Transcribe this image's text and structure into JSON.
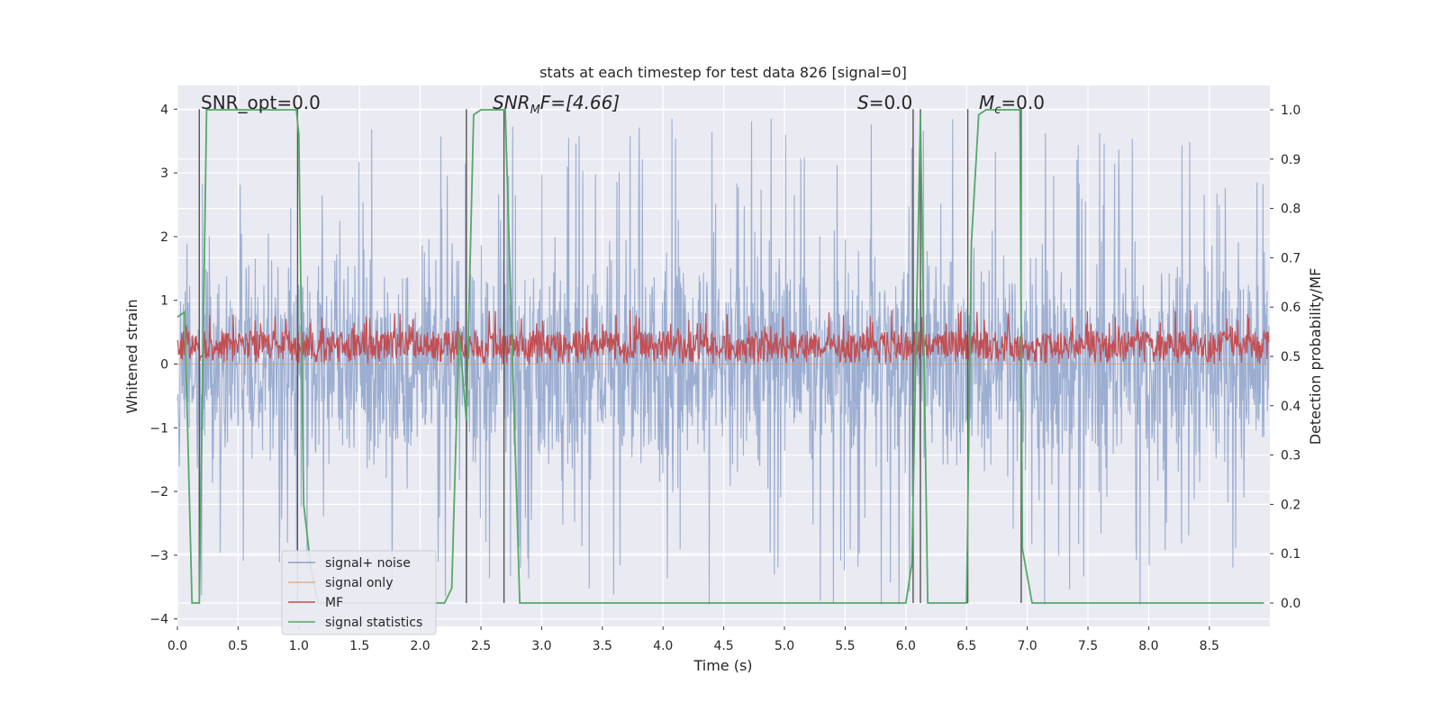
{
  "chart_data": {
    "type": "line",
    "title": "stats at each timestep for test data 826 [signal=0]",
    "xlabel": "Time (s)",
    "ylabel": "Whitened strain",
    "ylabel_right": "Detection probability/MF",
    "xlim": [
      0.0,
      9.0
    ],
    "ylim": [
      -4.25,
      4.35
    ],
    "ylim_right": [
      -0.045,
      1.045
    ],
    "xticks": [
      "0.0",
      "0.5",
      "1.0",
      "1.5",
      "2.0",
      "2.5",
      "3.0",
      "3.5",
      "4.0",
      "4.5",
      "5.0",
      "5.5",
      "6.0",
      "6.5",
      "7.0",
      "7.5",
      "8.0",
      "8.5"
    ],
    "yticks": [
      "4",
      "3",
      "2",
      "1",
      "0",
      "−1",
      "−2",
      "−3",
      "−4"
    ],
    "yticks_right": [
      "1.0",
      "0.9",
      "0.8",
      "0.7",
      "0.6",
      "0.5",
      "0.4",
      "0.3",
      "0.2",
      "0.1",
      "0.0"
    ],
    "grid": true,
    "legend_position": "lower-left",
    "annotations": {
      "snr_opt": "SNR_opt=0.0",
      "snr_mf_main": "SNR",
      "snr_mf_sub": "M",
      "snr_mf_rest": "F=[4.66]",
      "s_main": "S",
      "s_rest": "=0.0",
      "mc_main": "M",
      "mc_sub": "c",
      "mc_rest": "=0.0"
    },
    "series": [
      {
        "name": "signal+ noise",
        "color": "#4c72b0",
        "envelope_typical": 2.0,
        "peak_max": 4.0,
        "min_peak": -3.77
      },
      {
        "name": "signal only",
        "color": "#dd8452",
        "values": "zero"
      },
      {
        "name": "MF",
        "color": "#c44e52",
        "range": [
          0.0,
          1.0
        ],
        "typical": 0.3
      },
      {
        "name": "signal statistics",
        "color": "#55a868",
        "x": [
          0.0,
          0.06,
          0.12,
          0.18,
          0.24,
          0.3,
          0.98,
          1.0,
          1.04,
          1.1,
          1.16,
          1.22,
          1.3,
          1.5,
          1.7,
          1.8,
          2.0,
          2.1,
          2.2,
          2.26,
          2.32,
          2.38,
          2.44,
          2.5,
          2.7,
          2.76,
          2.82,
          3.0,
          4.0,
          5.0,
          6.0,
          6.05,
          6.12,
          6.18,
          6.2,
          6.5,
          6.54,
          6.6,
          6.66,
          6.94,
          6.96,
          7.04,
          7.1,
          8.0,
          8.95
        ],
        "y": [
          0.58,
          0.59,
          0.0,
          0.0,
          1.0,
          1.0,
          1.0,
          0.95,
          0.2,
          0.07,
          0.0,
          0.0,
          0.0,
          0.0,
          0.0,
          0.0,
          0.0,
          0.0,
          0.0,
          0.03,
          0.55,
          0.37,
          0.99,
          1.0,
          1.0,
          0.5,
          0.0,
          0.0,
          0.0,
          0.0,
          0.0,
          0.08,
          0.99,
          0.0,
          0.0,
          0.0,
          0.73,
          0.99,
          1.0,
          1.0,
          0.11,
          0.0,
          0.0,
          0.0,
          0.0
        ]
      }
    ],
    "vlines_x": [
      0.18,
      0.99,
      2.38,
      2.69,
      6.06,
      6.12,
      6.51,
      6.95
    ]
  }
}
